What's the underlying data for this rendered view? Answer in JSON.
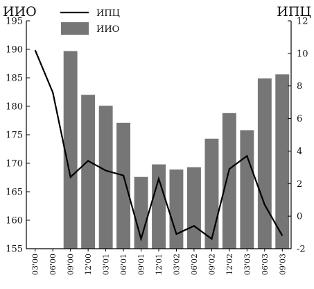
{
  "chart_data": {
    "type": "bar",
    "categories": [
      "03'00",
      "06'00",
      "09'00",
      "12'00",
      "03'01",
      "06'01",
      "09'01",
      "12'01",
      "03'02",
      "06'02",
      "09'02",
      "12'02",
      "03'03",
      "06'03",
      "09'03"
    ],
    "left_title": "ИИО",
    "right_title": "ИПЦ",
    "ylim_left": [
      155,
      195
    ],
    "yticks_left": [
      155,
      160,
      165,
      170,
      175,
      180,
      185,
      190,
      195
    ],
    "ylim_right": [
      -2,
      12
    ],
    "yticks_right": [
      -2,
      0,
      2,
      4,
      6,
      8,
      10,
      12
    ],
    "grid": false,
    "legend_position": "top-left",
    "series": [
      {
        "name": "ИИО",
        "kind": "bar",
        "axis": "left",
        "color": "#767676",
        "values": [
          null,
          null,
          189.7,
          182.0,
          180.1,
          177.1,
          167.6,
          169.8,
          168.9,
          169.3,
          174.3,
          178.8,
          175.8,
          184.9,
          185.6
        ]
      },
      {
        "name": "ИПЦ",
        "kind": "line",
        "axis": "right",
        "color": "#000000",
        "values": [
          10.2,
          7.6,
          2.4,
          3.4,
          2.8,
          2.5,
          -1.4,
          2.3,
          -1.1,
          -0.6,
          -1.4,
          2.9,
          3.7,
          0.7,
          -1.2
        ]
      }
    ]
  }
}
